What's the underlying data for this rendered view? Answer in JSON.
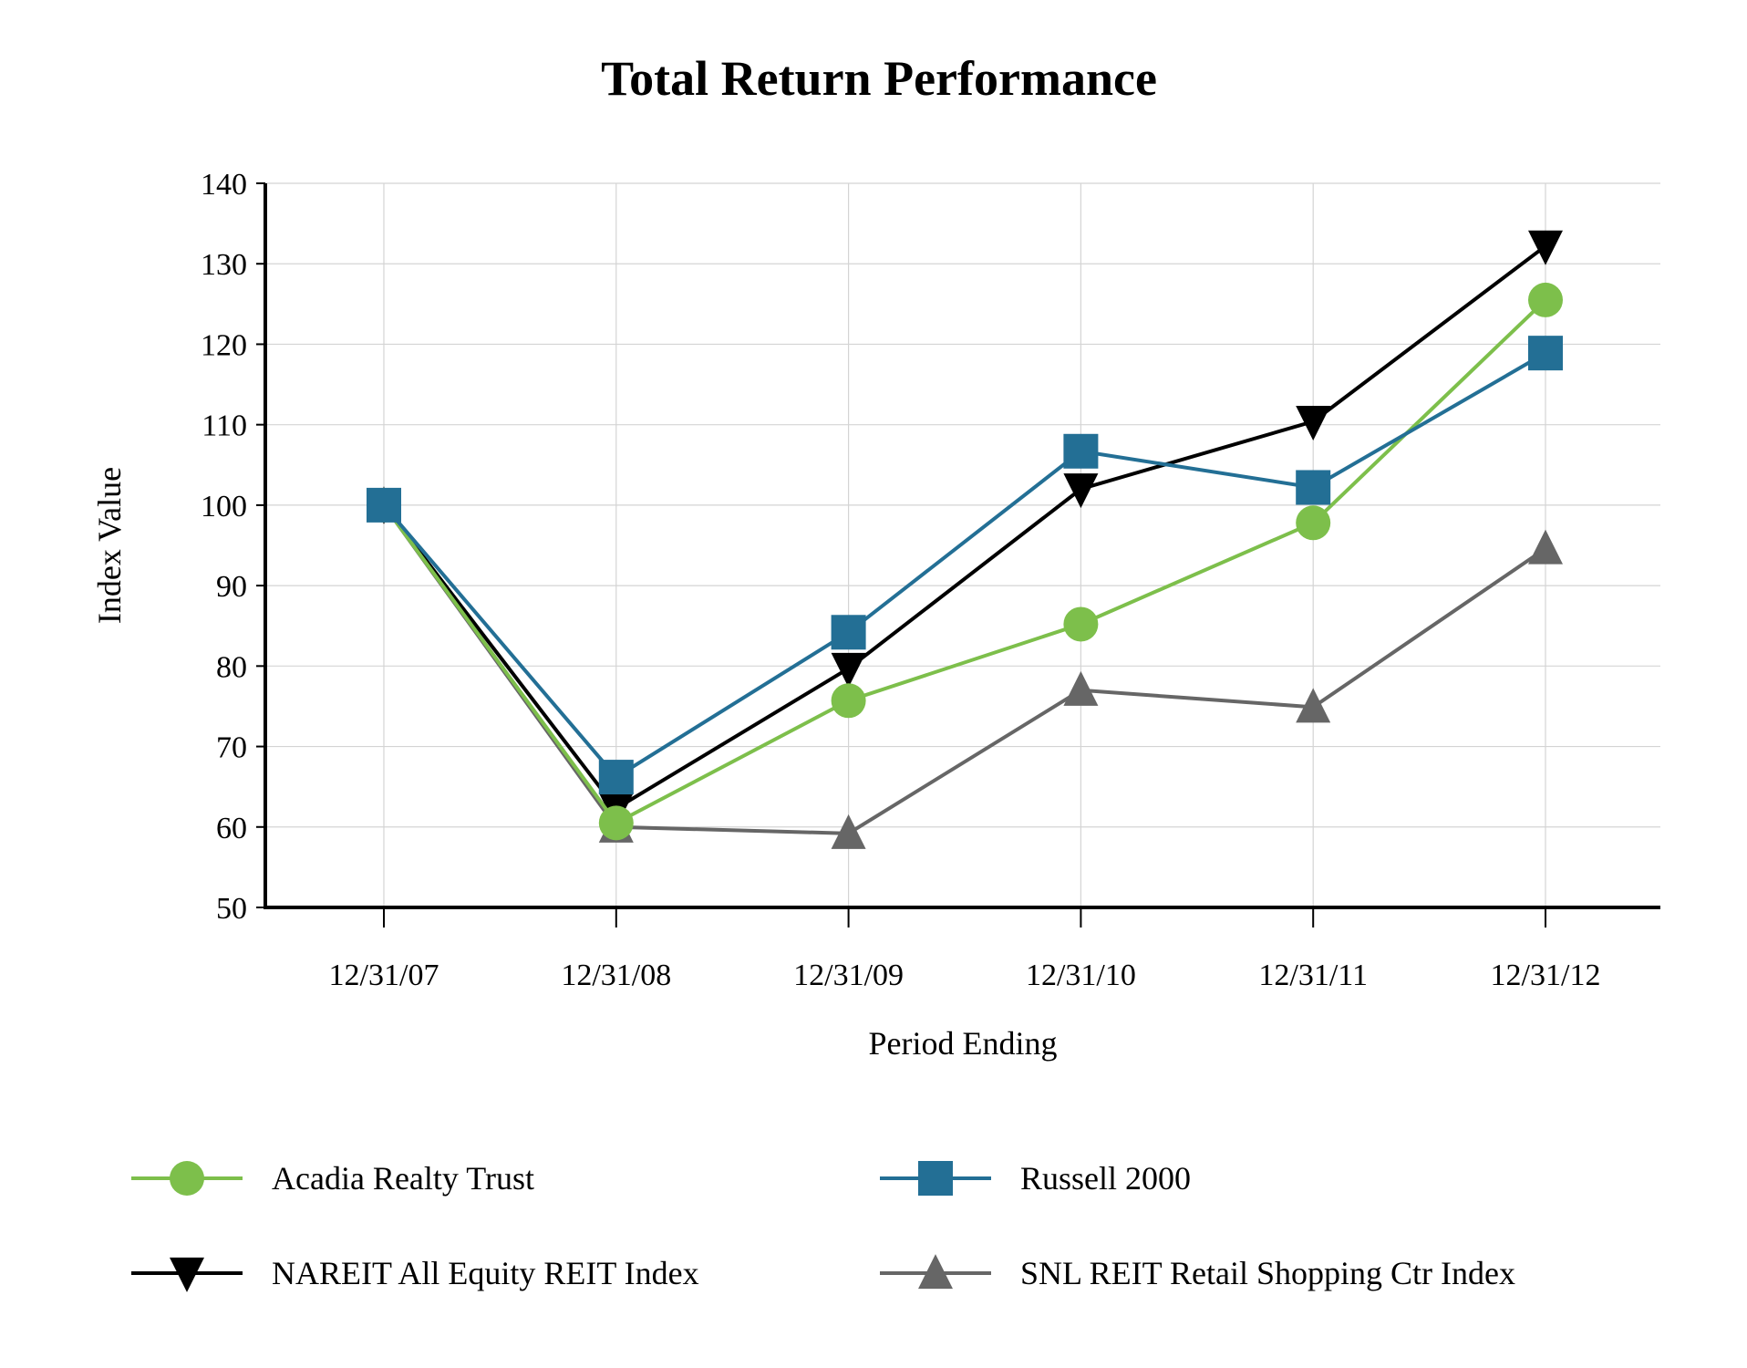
{
  "chart_data": {
    "type": "line",
    "title": "Total Return Performance",
    "xlabel": "Period Ending",
    "ylabel": "Index Value",
    "ylim": [
      50,
      140
    ],
    "yticks": [
      50,
      60,
      70,
      80,
      90,
      100,
      110,
      120,
      130,
      140
    ],
    "grid": true,
    "legend_placement": "bottom",
    "categories": [
      "12/31/07",
      "12/31/08",
      "12/31/09",
      "12/31/10",
      "12/31/11",
      "12/31/12"
    ],
    "series": [
      {
        "name": "Acadia Realty Trust",
        "color": "#7dbf4b",
        "marker": "circle",
        "values": [
          100.0,
          60.5,
          75.7,
          85.2,
          97.8,
          125.5
        ]
      },
      {
        "name": "Russell 2000",
        "color": "#236f95",
        "marker": "square",
        "values": [
          100.0,
          66.2,
          84.2,
          106.7,
          102.2,
          118.9
        ]
      },
      {
        "name": "NAREIT All Equity REIT Index",
        "color": "#000000",
        "marker": "triangle-down",
        "values": [
          100.0,
          62.3,
          79.7,
          102.0,
          110.4,
          132.2
        ]
      },
      {
        "name": "SNL REIT Retail Shopping Ctr Index",
        "color": "#666666",
        "marker": "triangle-up",
        "values": [
          100.0,
          60.0,
          59.2,
          77.0,
          74.9,
          94.6
        ]
      }
    ]
  }
}
